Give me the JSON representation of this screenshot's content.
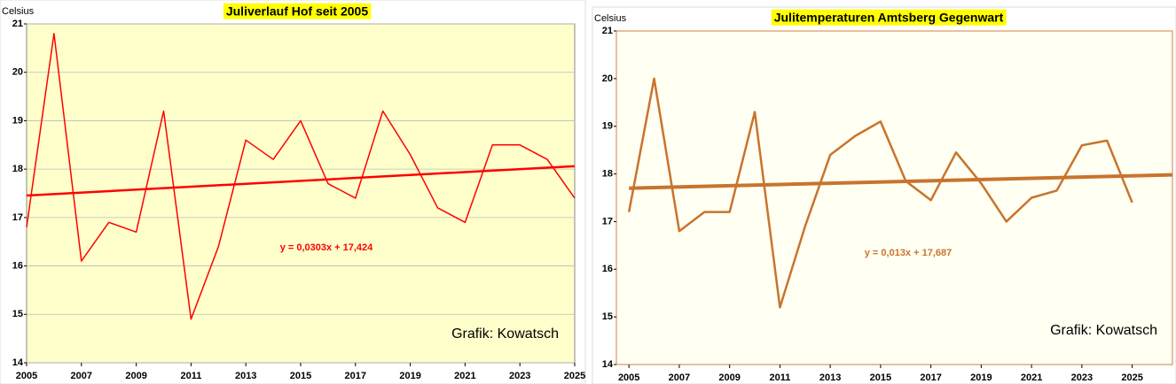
{
  "chart_data": [
    {
      "type": "line",
      "title": "Juliverlauf Hof seit 2005",
      "y_label": "Celsius",
      "credit": "Grafik: Kowatsch",
      "x": [
        2005,
        2006,
        2007,
        2008,
        2009,
        2010,
        2011,
        2012,
        2013,
        2014,
        2015,
        2016,
        2017,
        2018,
        2019,
        2020,
        2021,
        2022,
        2023,
        2024,
        2025
      ],
      "series": [
        {
          "color": "#ff0000",
          "values": [
            16.8,
            20.8,
            16.1,
            16.9,
            16.7,
            19.2,
            14.9,
            16.4,
            18.6,
            18.2,
            19.0,
            17.7,
            17.4,
            19.2,
            18.3,
            17.2,
            16.9,
            18.5,
            18.5,
            18.2,
            17.4
          ]
        }
      ],
      "trendline": {
        "label": "y = 0,0303x + 17,424",
        "slope": 0.0303,
        "intercept": 17.424,
        "color": "#ff0000"
      },
      "xlim": [
        2005,
        2025
      ],
      "xticks": [
        2005,
        2007,
        2009,
        2011,
        2013,
        2015,
        2017,
        2019,
        2021,
        2023,
        2025
      ],
      "ylim": [
        14,
        21
      ],
      "yticks": [
        14,
        15,
        16,
        17,
        18,
        19,
        20,
        21
      ],
      "grid": true
    },
    {
      "type": "line",
      "title": "Julitemperaturen Amtsberg Gegenwart",
      "y_label": "Celsius",
      "credit": "Grafik: Kowatsch",
      "x": [
        2005,
        2006,
        2007,
        2008,
        2009,
        2010,
        2011,
        2012,
        2013,
        2014,
        2015,
        2016,
        2017,
        2018,
        2019,
        2020,
        2021,
        2022,
        2023,
        2024,
        2025
      ],
      "series": [
        {
          "color": "#c8742e",
          "values": [
            17.2,
            20.0,
            16.8,
            17.2,
            17.2,
            19.3,
            15.2,
            16.9,
            18.4,
            18.8,
            19.1,
            17.85,
            17.45,
            18.45,
            17.8,
            17.0,
            17.5,
            17.65,
            18.6,
            18.7,
            17.4
          ]
        }
      ],
      "trendline": {
        "label": "y = 0,013x + 17,687",
        "slope": 0.013,
        "intercept": 17.687,
        "color": "#c8742e"
      },
      "xlim": [
        2004.5,
        2026.6
      ],
      "xticks": [
        2005,
        2007,
        2009,
        2011,
        2013,
        2015,
        2017,
        2019,
        2021,
        2023,
        2025
      ],
      "ylim": [
        14,
        21
      ],
      "yticks": [
        14,
        15,
        16,
        17,
        18,
        19,
        20,
        21
      ],
      "grid": false
    }
  ]
}
